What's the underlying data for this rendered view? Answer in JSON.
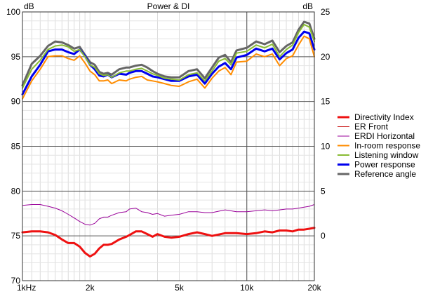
{
  "chart_data": {
    "type": "line",
    "title": "Power & DI",
    "x_scale": "log",
    "xlim": [
      1000,
      20000
    ],
    "x_ticks": [
      {
        "value": 1000,
        "label": "1kHz"
      },
      {
        "value": 2000,
        "label": "2k"
      },
      {
        "value": 5000,
        "label": "5k"
      },
      {
        "value": 10000,
        "label": "10k"
      },
      {
        "value": 20000,
        "label": "20k"
      }
    ],
    "y_left": {
      "unit": "dB",
      "range": [
        70,
        100
      ],
      "ticks": [
        {
          "value": 70,
          "label": "70"
        },
        {
          "value": 75,
          "label": "75"
        },
        {
          "value": 80,
          "label": "80"
        },
        {
          "value": 85,
          "label": "85"
        },
        {
          "value": 90,
          "label": "90"
        },
        {
          "value": 95,
          "label": "95"
        },
        {
          "value": 100,
          "label": "100"
        }
      ]
    },
    "y_right": {
      "unit": "dB",
      "range": [
        -5,
        25
      ],
      "ticks": [
        {
          "value": 0,
          "label": "0"
        },
        {
          "value": 5,
          "label": "5"
        },
        {
          "value": 10,
          "label": "10"
        },
        {
          "value": 15,
          "label": "15"
        },
        {
          "value": 20,
          "label": "20"
        },
        {
          "value": 25,
          "label": "25"
        }
      ]
    },
    "grid": true,
    "legend_position": "right",
    "series": [
      {
        "name": "Directivity Index",
        "color": "#ee1111",
        "width": 3,
        "axis": "right",
        "x": [
          1000,
          1100,
          1200,
          1300,
          1400,
          1500,
          1600,
          1700,
          1800,
          1900,
          2000,
          2100,
          2200,
          2300,
          2400,
          2500,
          2700,
          2900,
          3000,
          3200,
          3400,
          3600,
          3800,
          4000,
          4300,
          4600,
          5000,
          5500,
          6000,
          6500,
          7000,
          8000,
          9000,
          10000,
          11000,
          12000,
          13000,
          14000,
          15000,
          16000,
          17000,
          18000,
          19000,
          20000
        ],
        "y": [
          0.4,
          0.5,
          0.5,
          0.4,
          0.1,
          -0.4,
          -0.8,
          -0.8,
          -1.2,
          -1.9,
          -2.3,
          -2.0,
          -1.4,
          -1.0,
          -1.0,
          -0.9,
          -0.4,
          -0.1,
          0.1,
          0.5,
          0.5,
          0.2,
          -0.1,
          0.2,
          -0.1,
          -0.2,
          -0.1,
          0.2,
          0.4,
          0.2,
          0.0,
          0.3,
          0.3,
          0.2,
          0.3,
          0.5,
          0.4,
          0.6,
          0.6,
          0.5,
          0.7,
          0.7,
          0.8,
          0.9
        ]
      },
      {
        "name": "ER Front",
        "color": "#cc2222",
        "width": 1,
        "axis": "left",
        "x": [],
        "y": []
      },
      {
        "name": "ERDI Horizontal",
        "color": "#990099",
        "width": 1,
        "axis": "right",
        "x": [
          1000,
          1100,
          1200,
          1300,
          1400,
          1500,
          1600,
          1700,
          1800,
          1900,
          2000,
          2100,
          2200,
          2300,
          2400,
          2500,
          2700,
          2900,
          3000,
          3200,
          3400,
          3600,
          3800,
          4000,
          4300,
          4600,
          5000,
          5500,
          6000,
          6500,
          7000,
          8000,
          9000,
          10000,
          11000,
          12000,
          13000,
          14000,
          15000,
          16000,
          17000,
          18000,
          19000,
          20000
        ],
        "y": [
          3.4,
          3.5,
          3.5,
          3.3,
          3.1,
          2.8,
          2.4,
          2.0,
          1.6,
          1.3,
          1.2,
          1.4,
          1.9,
          2.1,
          2.1,
          2.3,
          2.6,
          2.7,
          3.0,
          3.1,
          2.7,
          2.6,
          2.4,
          2.5,
          2.2,
          2.3,
          2.4,
          2.7,
          2.7,
          2.6,
          2.6,
          2.9,
          2.7,
          2.7,
          2.8,
          2.9,
          2.8,
          2.9,
          3.0,
          3.0,
          3.1,
          3.2,
          3.3,
          3.5
        ]
      },
      {
        "name": "In-room response",
        "color": "#ff8c00",
        "width": 2,
        "axis": "left",
        "x": [
          1000,
          1100,
          1200,
          1300,
          1400,
          1500,
          1600,
          1700,
          1800,
          1900,
          2000,
          2100,
          2200,
          2300,
          2400,
          2500,
          2700,
          2900,
          3000,
          3200,
          3400,
          3600,
          3800,
          4000,
          4300,
          4600,
          5000,
          5500,
          6000,
          6500,
          7000,
          7500,
          8000,
          8500,
          9000,
          10000,
          11000,
          12000,
          13000,
          14000,
          15000,
          16000,
          17000,
          18000,
          19000,
          20000
        ],
        "y": [
          90.3,
          92.3,
          93.6,
          95.0,
          95.1,
          95.1,
          94.8,
          94.6,
          95.1,
          94.3,
          93.4,
          93.0,
          92.3,
          92.3,
          92.4,
          92.0,
          92.4,
          92.3,
          92.5,
          92.7,
          92.8,
          92.4,
          92.3,
          92.2,
          92.0,
          91.8,
          91.7,
          92.2,
          92.5,
          91.5,
          92.6,
          93.4,
          93.8,
          93.0,
          94.4,
          94.5,
          95.3,
          95.0,
          95.3,
          94.0,
          94.8,
          95.1,
          96.3,
          97.3,
          97.0,
          95.0
        ]
      },
      {
        "name": "Listening window",
        "color": "#88bb33",
        "width": 2,
        "axis": "left",
        "x": [
          1000,
          1100,
          1200,
          1300,
          1400,
          1500,
          1600,
          1700,
          1800,
          1900,
          2000,
          2100,
          2200,
          2300,
          2400,
          2500,
          2700,
          2900,
          3000,
          3200,
          3400,
          3600,
          3800,
          4000,
          4300,
          4600,
          5000,
          5500,
          6000,
          6500,
          7000,
          7500,
          8000,
          8500,
          9000,
          10000,
          11000,
          12000,
          13000,
          14000,
          15000,
          16000,
          17000,
          18000,
          19000,
          20000
        ],
        "y": [
          91.5,
          93.6,
          94.6,
          95.8,
          96.2,
          96.3,
          96.1,
          95.6,
          95.8,
          95.0,
          94.1,
          93.8,
          93.1,
          92.9,
          93.0,
          92.7,
          93.2,
          93.4,
          93.4,
          93.6,
          93.7,
          93.4,
          93.1,
          92.9,
          92.6,
          92.5,
          92.4,
          93.0,
          93.2,
          92.3,
          93.4,
          94.5,
          94.8,
          94.1,
          95.4,
          95.6,
          96.3,
          96.0,
          96.4,
          95.0,
          95.8,
          96.3,
          97.7,
          98.6,
          98.3,
          96.7
        ]
      },
      {
        "name": "Power response",
        "color": "#0000ee",
        "width": 3,
        "axis": "left",
        "x": [
          1000,
          1100,
          1200,
          1300,
          1400,
          1500,
          1600,
          1700,
          1800,
          1900,
          2000,
          2100,
          2200,
          2300,
          2400,
          2500,
          2700,
          2900,
          3000,
          3200,
          3400,
          3600,
          3800,
          4000,
          4300,
          4600,
          5000,
          5500,
          6000,
          6500,
          7000,
          7500,
          8000,
          8500,
          9000,
          10000,
          11000,
          12000,
          13000,
          14000,
          15000,
          16000,
          17000,
          18000,
          19000,
          20000
        ],
        "y": [
          90.8,
          92.8,
          94.1,
          95.6,
          95.8,
          95.8,
          95.5,
          95.3,
          95.8,
          95.1,
          94.1,
          93.6,
          92.9,
          92.8,
          93.0,
          92.7,
          93.1,
          93.0,
          93.2,
          93.4,
          93.4,
          93.1,
          92.8,
          92.7,
          92.5,
          92.3,
          92.3,
          92.8,
          93.0,
          92.0,
          93.1,
          93.9,
          94.3,
          93.6,
          94.9,
          95.2,
          95.9,
          95.6,
          95.9,
          94.7,
          95.4,
          95.8,
          97.1,
          97.8,
          97.6,
          95.8
        ]
      },
      {
        "name": "Reference angle",
        "color": "#666666",
        "width": 3,
        "axis": "left",
        "x": [
          1000,
          1100,
          1200,
          1300,
          1400,
          1500,
          1600,
          1700,
          1800,
          1900,
          2000,
          2100,
          2200,
          2300,
          2400,
          2500,
          2700,
          2900,
          3000,
          3200,
          3400,
          3600,
          3800,
          4000,
          4300,
          4600,
          5000,
          5500,
          6000,
          6500,
          7000,
          7500,
          8000,
          8500,
          9000,
          10000,
          11000,
          12000,
          13000,
          14000,
          15000,
          16000,
          17000,
          18000,
          19000,
          20000
        ],
        "y": [
          91.8,
          94.2,
          95.1,
          96.2,
          96.7,
          96.6,
          96.3,
          95.9,
          96.1,
          95.2,
          94.4,
          94.1,
          93.3,
          93.1,
          93.2,
          93.0,
          93.6,
          93.8,
          93.8,
          94.0,
          94.1,
          93.8,
          93.4,
          93.1,
          92.8,
          92.7,
          92.7,
          93.4,
          93.6,
          92.6,
          93.8,
          94.9,
          95.2,
          94.4,
          95.7,
          96.0,
          96.7,
          96.4,
          96.8,
          95.5,
          96.2,
          96.6,
          98.0,
          98.9,
          98.7,
          97.0
        ]
      }
    ]
  }
}
